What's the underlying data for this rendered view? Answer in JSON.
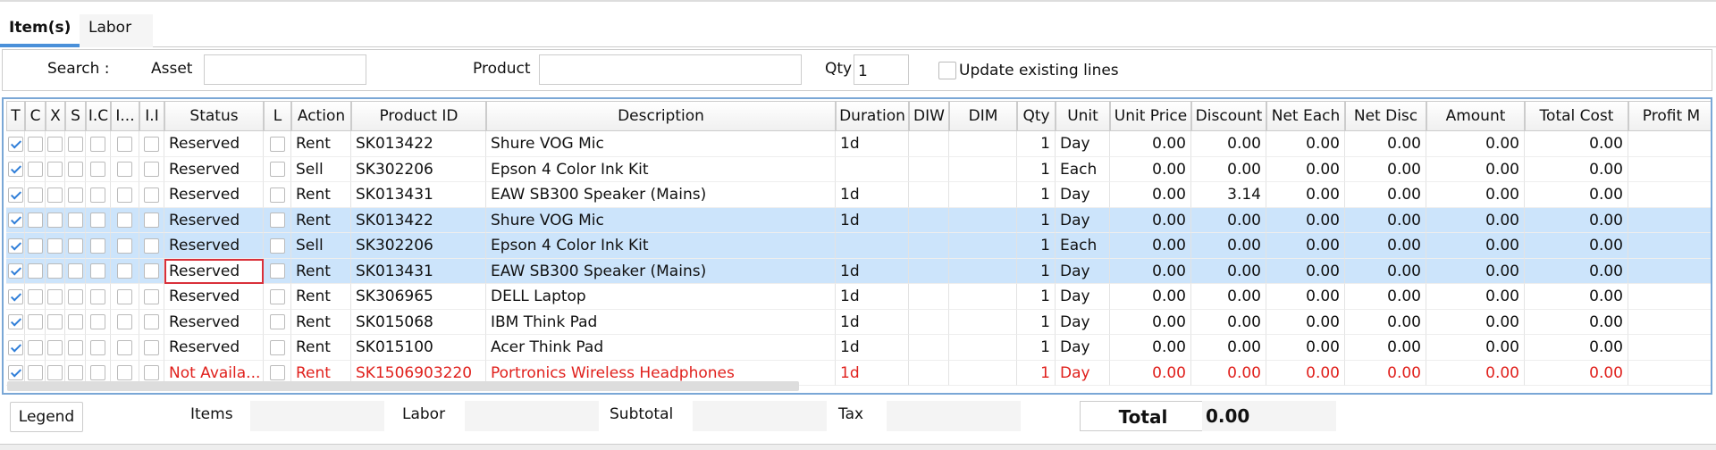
{
  "tabs": [
    "Item(s)",
    "Labor"
  ],
  "search": {
    "label": "Search :",
    "asset_label": "Asset",
    "product_label": "Product",
    "qty_label": "Qty",
    "qty_value": "1",
    "update_label": "Update existing lines"
  },
  "table": {
    "columns": [
      "T",
      "C",
      "X",
      "S",
      "I.C",
      "I...",
      "I.I",
      "Status",
      "L",
      "Action",
      "Product ID",
      "Description",
      "Duration",
      "DIW",
      "DIM",
      "Qty",
      "Unit",
      "Unit Price",
      "Discount",
      "Net Each",
      "Net Disc",
      "Amount",
      "Total Cost",
      "Profit M"
    ],
    "rows": [
      {
        "cells": [
          "Reserved",
          "Rent",
          "SK013422",
          "Shure VOG Mic",
          "1d",
          null,
          null,
          1,
          "Day",
          "0.00",
          "0.00",
          "0.00",
          "0.00",
          "0.00",
          "0.00"
        ]
      },
      {
        "cells": [
          "Reserved",
          "Sell",
          "SK302206",
          "Epson 4 Color Ink Kit",
          null,
          null,
          null,
          1,
          "Each",
          "0.00",
          "0.00",
          "0.00",
          "0.00",
          "0.00",
          "0.00"
        ]
      },
      {
        "cells": [
          "Reserved",
          "Rent",
          "SK013431",
          "EAW SB300 Speaker (Mains)",
          "1d",
          null,
          null,
          1,
          "Day",
          "0.00",
          "3.14",
          "0.00",
          "0.00",
          "0.00",
          "0.00"
        ]
      },
      {
        "cells": [
          "Reserved",
          "Rent",
          "SK013422",
          "Shure VOG Mic",
          "1d",
          null,
          null,
          1,
          "Day",
          "0.00",
          "0.00",
          "0.00",
          "0.00",
          "0.00",
          "0.00"
        ],
        "selected": true
      },
      {
        "cells": [
          "Reserved",
          "Sell",
          "SK302206",
          "Epson 4 Color Ink Kit",
          null,
          null,
          null,
          1,
          "Each",
          "0.00",
          "0.00",
          "0.00",
          "0.00",
          "0.00",
          "0.00"
        ],
        "selected": true
      },
      {
        "cells": [
          "Reserved",
          "Rent",
          "SK013431",
          "EAW SB300 Speaker (Mains)",
          "1d",
          null,
          null,
          1,
          "Day",
          "0.00",
          "0.00",
          "0.00",
          "0.00",
          "0.00",
          "0.00"
        ],
        "selected": true
      },
      {
        "cells": [
          "Reserved",
          "Rent",
          "SK306965",
          "DELL Laptop",
          "1d",
          null,
          null,
          1,
          "Day",
          "0.00",
          "0.00",
          "0.00",
          "0.00",
          "0.00",
          "0.00"
        ]
      },
      {
        "cells": [
          "Reserved",
          "Rent",
          "SK015068",
          "IBM Think Pad",
          "1d",
          null,
          null,
          1,
          "Day",
          "0.00",
          "0.00",
          "0.00",
          "0.00",
          "0.00",
          "0.00"
        ]
      },
      {
        "cells": [
          "Reserved",
          "Rent",
          "SK015100",
          "Acer Think Pad",
          "1d",
          null,
          null,
          1,
          "Day",
          "0.00",
          "0.00",
          "0.00",
          "0.00",
          "0.00",
          "0.00"
        ]
      },
      {
        "cells": [
          "Not Availa...",
          "Rent",
          "SK1506903220",
          "Portronics Wireless Headphones",
          "1d",
          null,
          null,
          1,
          "Day",
          "0.00",
          "0.00",
          "0.00",
          "0.00",
          "0.00",
          "0.00"
        ],
        "color": "#e0201c"
      }
    ]
  },
  "footer": {
    "legend": "Legend",
    "items": "Items",
    "labor": "Labor",
    "subtotal": "Subtotal",
    "tax": "Tax",
    "total": "Total",
    "total_value": "0.00"
  }
}
